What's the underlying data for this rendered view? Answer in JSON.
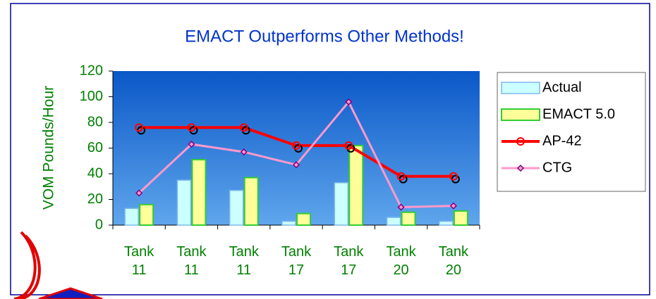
{
  "chart_data": {
    "type": "bar_line",
    "title": "EMACT Outperforms Other Methods!",
    "y_label": "VOM Pounds/Hour",
    "categories": [
      "Tank 11",
      "Tank 11",
      "Tank 11",
      "Tank 17",
      "Tank 17",
      "Tank 20",
      "Tank 20"
    ],
    "series": [
      {
        "name": "Actual",
        "type": "bar",
        "color": "#ccffff",
        "values": [
          13,
          35,
          27,
          3,
          33,
          6,
          3
        ]
      },
      {
        "name": "EMACT 5.0",
        "type": "bar",
        "color": "#ffff99",
        "values": [
          16,
          51,
          37,
          9,
          62,
          10,
          11
        ]
      },
      {
        "name": "AP-42",
        "type": "line",
        "color": "#ff0000",
        "values": [
          76,
          76,
          76,
          62,
          62,
          38,
          38
        ]
      },
      {
        "name": "CTG",
        "type": "line",
        "color": "#ff99cc",
        "values": [
          25,
          63,
          57,
          47,
          96,
          14,
          15
        ]
      }
    ],
    "ylim": [
      0,
      120
    ],
    "yticks": [
      0,
      20,
      40,
      60,
      80,
      100,
      120
    ],
    "legend": "right"
  }
}
